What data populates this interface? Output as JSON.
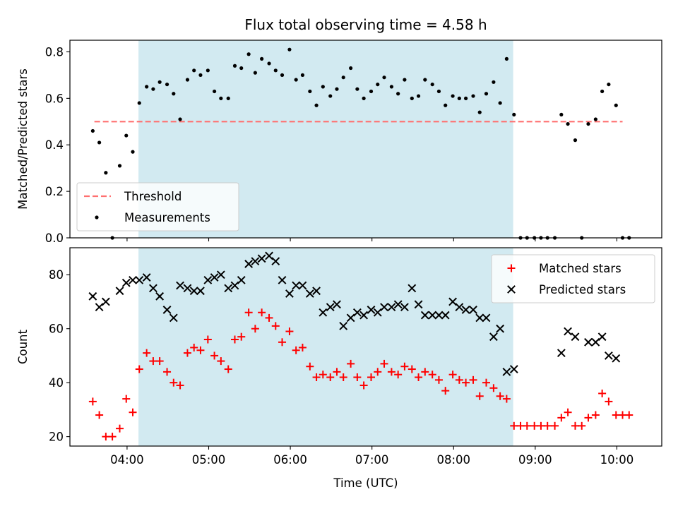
{
  "chart_data": {
    "title": "Flux total observing time = 4.58 h",
    "xlabel": "Time (UTC)",
    "x_unit": "hours UTC",
    "xlim": [
      3.3,
      10.55
    ],
    "xticks": [
      4,
      5,
      6,
      7,
      8,
      9,
      10
    ],
    "xtick_labels": [
      "04:00",
      "05:00",
      "06:00",
      "07:00",
      "08:00",
      "09:00",
      "10:00"
    ],
    "shaded_span": {
      "start": 4.14,
      "end": 8.73,
      "color": "#add8e6"
    },
    "panels": [
      {
        "type": "scatter",
        "ylabel": "Matched/Predicted stars",
        "ylim": [
          0,
          0.85
        ],
        "yticks": [
          0.0,
          0.2,
          0.4,
          0.6,
          0.8
        ],
        "ytick_labels": [
          "0.0",
          "0.2",
          "0.4",
          "0.6",
          "0.8"
        ],
        "legend_position": "lower-left",
        "threshold": {
          "name": "Threshold",
          "value": 0.5,
          "x_start": 3.6,
          "x_end": 10.07,
          "color": "#ff7070"
        },
        "series": [
          {
            "name": "Measurements",
            "marker": "dot",
            "color": "#000000",
            "points": [
              [
                3.58,
                0.46
              ],
              [
                3.66,
                0.41
              ],
              [
                3.74,
                0.28
              ],
              [
                3.82,
                0.0
              ],
              [
                3.91,
                0.31
              ],
              [
                3.99,
                0.44
              ],
              [
                4.07,
                0.37
              ],
              [
                4.15,
                0.58
              ],
              [
                4.24,
                0.65
              ],
              [
                4.32,
                0.64
              ],
              [
                4.4,
                0.67
              ],
              [
                4.49,
                0.66
              ],
              [
                4.57,
                0.62
              ],
              [
                4.65,
                0.51
              ],
              [
                4.74,
                0.68
              ],
              [
                4.82,
                0.72
              ],
              [
                4.9,
                0.7
              ],
              [
                4.99,
                0.72
              ],
              [
                5.07,
                0.63
              ],
              [
                5.15,
                0.6
              ],
              [
                5.24,
                0.6
              ],
              [
                5.32,
                0.74
              ],
              [
                5.4,
                0.73
              ],
              [
                5.49,
                0.79
              ],
              [
                5.57,
                0.71
              ],
              [
                5.65,
                0.77
              ],
              [
                5.74,
                0.75
              ],
              [
                5.82,
                0.72
              ],
              [
                5.9,
                0.7
              ],
              [
                5.99,
                0.81
              ],
              [
                6.07,
                0.68
              ],
              [
                6.15,
                0.7
              ],
              [
                6.24,
                0.63
              ],
              [
                6.32,
                0.57
              ],
              [
                6.4,
                0.65
              ],
              [
                6.49,
                0.61
              ],
              [
                6.57,
                0.64
              ],
              [
                6.65,
                0.69
              ],
              [
                6.74,
                0.73
              ],
              [
                6.82,
                0.64
              ],
              [
                6.9,
                0.6
              ],
              [
                6.99,
                0.63
              ],
              [
                7.07,
                0.66
              ],
              [
                7.15,
                0.69
              ],
              [
                7.24,
                0.65
              ],
              [
                7.32,
                0.62
              ],
              [
                7.4,
                0.68
              ],
              [
                7.49,
                0.6
              ],
              [
                7.57,
                0.61
              ],
              [
                7.65,
                0.68
              ],
              [
                7.74,
                0.66
              ],
              [
                7.82,
                0.63
              ],
              [
                7.9,
                0.57
              ],
              [
                7.99,
                0.61
              ],
              [
                8.07,
                0.6
              ],
              [
                8.15,
                0.6
              ],
              [
                8.24,
                0.61
              ],
              [
                8.32,
                0.54
              ],
              [
                8.4,
                0.62
              ],
              [
                8.49,
                0.67
              ],
              [
                8.57,
                0.58
              ],
              [
                8.65,
                0.77
              ],
              [
                8.74,
                0.53
              ],
              [
                8.82,
                0.0
              ],
              [
                8.9,
                0.0
              ],
              [
                8.99,
                0.0
              ],
              [
                9.07,
                0.0
              ],
              [
                9.15,
                0.0
              ],
              [
                9.24,
                0.0
              ],
              [
                9.32,
                0.53
              ],
              [
                9.4,
                0.49
              ],
              [
                9.49,
                0.42
              ],
              [
                9.57,
                0.0
              ],
              [
                9.65,
                0.49
              ],
              [
                9.74,
                0.51
              ],
              [
                9.82,
                0.63
              ],
              [
                9.9,
                0.66
              ],
              [
                9.99,
                0.57
              ],
              [
                10.07,
                0.0
              ],
              [
                10.15,
                0.0
              ]
            ]
          }
        ]
      },
      {
        "type": "scatter",
        "ylabel": "Count",
        "ylim": [
          16.5,
          90
        ],
        "yticks": [
          20,
          40,
          60,
          80
        ],
        "ytick_labels": [
          "20",
          "40",
          "60",
          "80"
        ],
        "legend_position": "top-right",
        "series": [
          {
            "name": "Matched stars",
            "marker": "plus",
            "color": "#ff0000",
            "points": [
              [
                3.58,
                33
              ],
              [
                3.66,
                28
              ],
              [
                3.74,
                20
              ],
              [
                3.82,
                20
              ],
              [
                3.91,
                23
              ],
              [
                3.99,
                34
              ],
              [
                4.07,
                29
              ],
              [
                4.15,
                45
              ],
              [
                4.24,
                51
              ],
              [
                4.32,
                48
              ],
              [
                4.4,
                48
              ],
              [
                4.49,
                44
              ],
              [
                4.57,
                40
              ],
              [
                4.65,
                39
              ],
              [
                4.74,
                51
              ],
              [
                4.82,
                53
              ],
              [
                4.9,
                52
              ],
              [
                4.99,
                56
              ],
              [
                5.07,
                50
              ],
              [
                5.15,
                48
              ],
              [
                5.24,
                45
              ],
              [
                5.32,
                56
              ],
              [
                5.4,
                57
              ],
              [
                5.49,
                66
              ],
              [
                5.57,
                60
              ],
              [
                5.65,
                66
              ],
              [
                5.74,
                64
              ],
              [
                5.82,
                61
              ],
              [
                5.9,
                55
              ],
              [
                5.99,
                59
              ],
              [
                6.07,
                52
              ],
              [
                6.15,
                53
              ],
              [
                6.24,
                46
              ],
              [
                6.32,
                42
              ],
              [
                6.4,
                43
              ],
              [
                6.49,
                42
              ],
              [
                6.57,
                44
              ],
              [
                6.65,
                42
              ],
              [
                6.74,
                47
              ],
              [
                6.82,
                42
              ],
              [
                6.9,
                39
              ],
              [
                6.99,
                42
              ],
              [
                7.07,
                44
              ],
              [
                7.15,
                47
              ],
              [
                7.24,
                44
              ],
              [
                7.32,
                43
              ],
              [
                7.4,
                46
              ],
              [
                7.49,
                45
              ],
              [
                7.57,
                42
              ],
              [
                7.65,
                44
              ],
              [
                7.74,
                43
              ],
              [
                7.82,
                41
              ],
              [
                7.9,
                37
              ],
              [
                7.99,
                43
              ],
              [
                8.07,
                41
              ],
              [
                8.15,
                40
              ],
              [
                8.24,
                41
              ],
              [
                8.32,
                35
              ],
              [
                8.4,
                40
              ],
              [
                8.49,
                38
              ],
              [
                8.57,
                35
              ],
              [
                8.65,
                34
              ],
              [
                8.74,
                24
              ],
              [
                8.82,
                24
              ],
              [
                8.9,
                24
              ],
              [
                8.99,
                24
              ],
              [
                9.07,
                24
              ],
              [
                9.15,
                24
              ],
              [
                9.24,
                24
              ],
              [
                9.32,
                27
              ],
              [
                9.4,
                29
              ],
              [
                9.49,
                24
              ],
              [
                9.57,
                24
              ],
              [
                9.65,
                27
              ],
              [
                9.74,
                28
              ],
              [
                9.82,
                36
              ],
              [
                9.9,
                33
              ],
              [
                9.99,
                28
              ],
              [
                10.07,
                28
              ],
              [
                10.15,
                28
              ]
            ]
          },
          {
            "name": "Predicted stars",
            "marker": "x",
            "color": "#000000",
            "points": [
              [
                3.58,
                72
              ],
              [
                3.66,
                68
              ],
              [
                3.74,
                70
              ],
              [
                3.91,
                74
              ],
              [
                3.99,
                77
              ],
              [
                4.07,
                78
              ],
              [
                4.15,
                78
              ],
              [
                4.24,
                79
              ],
              [
                4.32,
                75
              ],
              [
                4.4,
                72
              ],
              [
                4.49,
                67
              ],
              [
                4.57,
                64
              ],
              [
                4.65,
                76
              ],
              [
                4.74,
                75
              ],
              [
                4.82,
                74
              ],
              [
                4.9,
                74
              ],
              [
                4.99,
                78
              ],
              [
                5.07,
                79
              ],
              [
                5.15,
                80
              ],
              [
                5.24,
                75
              ],
              [
                5.32,
                76
              ],
              [
                5.4,
                78
              ],
              [
                5.49,
                84
              ],
              [
                5.57,
                85
              ],
              [
                5.65,
                86
              ],
              [
                5.74,
                87
              ],
              [
                5.82,
                85
              ],
              [
                5.9,
                78
              ],
              [
                5.99,
                73
              ],
              [
                6.07,
                76
              ],
              [
                6.15,
                76
              ],
              [
                6.24,
                73
              ],
              [
                6.32,
                74
              ],
              [
                6.4,
                66
              ],
              [
                6.49,
                68
              ],
              [
                6.57,
                69
              ],
              [
                6.65,
                61
              ],
              [
                6.74,
                64
              ],
              [
                6.82,
                66
              ],
              [
                6.9,
                65
              ],
              [
                6.99,
                67
              ],
              [
                7.07,
                66
              ],
              [
                7.15,
                68
              ],
              [
                7.24,
                68
              ],
              [
                7.32,
                69
              ],
              [
                7.4,
                68
              ],
              [
                7.49,
                75
              ],
              [
                7.57,
                69
              ],
              [
                7.65,
                65
              ],
              [
                7.74,
                65
              ],
              [
                7.82,
                65
              ],
              [
                7.9,
                65
              ],
              [
                7.99,
                70
              ],
              [
                8.07,
                68
              ],
              [
                8.15,
                67
              ],
              [
                8.24,
                67
              ],
              [
                8.32,
                64
              ],
              [
                8.4,
                64
              ],
              [
                8.49,
                57
              ],
              [
                8.57,
                60
              ],
              [
                8.65,
                44
              ],
              [
                8.74,
                45
              ],
              [
                9.32,
                51
              ],
              [
                9.4,
                59
              ],
              [
                9.49,
                57
              ],
              [
                9.65,
                55
              ],
              [
                9.74,
                55
              ],
              [
                9.82,
                57
              ],
              [
                9.9,
                50
              ],
              [
                9.99,
                49
              ]
            ]
          }
        ]
      }
    ]
  }
}
